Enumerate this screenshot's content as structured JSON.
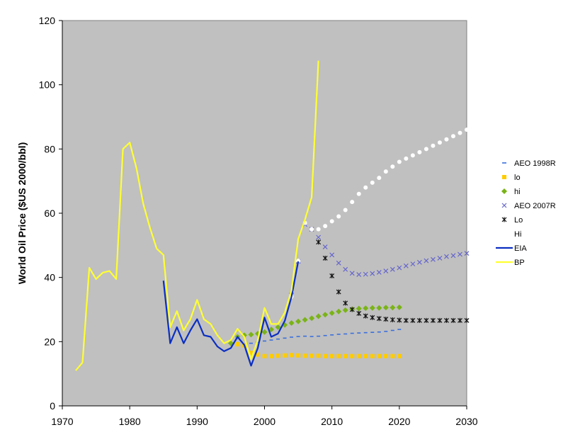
{
  "chart_data": {
    "type": "line",
    "title": "",
    "xlabel": "",
    "ylabel": "World Oil Price ($US 2000/bbl)",
    "xlim": [
      1970,
      2030
    ],
    "ylim": [
      0,
      120
    ],
    "xticks": [
      1970,
      1980,
      1990,
      2000,
      2010,
      2020,
      2030
    ],
    "yticks": [
      0,
      20,
      40,
      60,
      80,
      100,
      120
    ],
    "plot_background": "#c0c0c0",
    "grid": false,
    "legend_position": "right",
    "series": [
      {
        "name": "AEO 1998R",
        "style": "dash",
        "color": "#3a6fdc",
        "points": [
          [
            1996,
            19.0
          ],
          [
            1997,
            19.2
          ],
          [
            1998,
            19.5
          ],
          [
            1999,
            19.8
          ],
          [
            2000,
            20.2
          ],
          [
            2001,
            20.5
          ],
          [
            2002,
            20.8
          ],
          [
            2003,
            21.1
          ],
          [
            2004,
            21.4
          ],
          [
            2005,
            21.6
          ],
          [
            2006,
            21.7
          ],
          [
            2007,
            21.6
          ],
          [
            2008,
            21.7
          ],
          [
            2009,
            21.9
          ],
          [
            2010,
            22.1
          ],
          [
            2011,
            22.3
          ],
          [
            2012,
            22.4
          ],
          [
            2013,
            22.6
          ],
          [
            2014,
            22.7
          ],
          [
            2015,
            22.8
          ],
          [
            2016,
            22.9
          ],
          [
            2017,
            23.0
          ],
          [
            2018,
            23.2
          ],
          [
            2019,
            23.5
          ],
          [
            2020,
            23.8
          ]
        ]
      },
      {
        "name": "lo",
        "style": "square",
        "color": "#ffcc00",
        "points": [
          [
            1996,
            19.2
          ],
          [
            1997,
            18.8
          ],
          [
            1998,
            16.5
          ],
          [
            1999,
            16.0
          ],
          [
            2000,
            15.5
          ],
          [
            2001,
            15.5
          ],
          [
            2002,
            15.6
          ],
          [
            2003,
            15.7
          ],
          [
            2004,
            15.8
          ],
          [
            2005,
            15.7
          ],
          [
            2006,
            15.6
          ],
          [
            2007,
            15.6
          ],
          [
            2008,
            15.6
          ],
          [
            2009,
            15.5
          ],
          [
            2010,
            15.5
          ],
          [
            2011,
            15.5
          ],
          [
            2012,
            15.5
          ],
          [
            2013,
            15.5
          ],
          [
            2014,
            15.5
          ],
          [
            2015,
            15.5
          ],
          [
            2016,
            15.5
          ],
          [
            2017,
            15.5
          ],
          [
            2018,
            15.5
          ],
          [
            2019,
            15.5
          ],
          [
            2020,
            15.5
          ]
        ]
      },
      {
        "name": "hi",
        "style": "diamond",
        "color": "#7ab317",
        "points": [
          [
            1995,
            19.5
          ],
          [
            1996,
            21.5
          ],
          [
            1997,
            22.0
          ],
          [
            1998,
            22.2
          ],
          [
            1999,
            22.5
          ],
          [
            2000,
            23.0
          ],
          [
            2001,
            23.8
          ],
          [
            2002,
            24.5
          ],
          [
            2003,
            25.2
          ],
          [
            2004,
            25.8
          ],
          [
            2005,
            26.3
          ],
          [
            2006,
            26.8
          ],
          [
            2007,
            27.3
          ],
          [
            2008,
            27.9
          ],
          [
            2009,
            28.4
          ],
          [
            2010,
            28.9
          ],
          [
            2011,
            29.4
          ],
          [
            2012,
            29.8
          ],
          [
            2013,
            30.1
          ],
          [
            2014,
            30.3
          ],
          [
            2015,
            30.4
          ],
          [
            2016,
            30.5
          ],
          [
            2017,
            30.5
          ],
          [
            2018,
            30.6
          ],
          [
            2019,
            30.6
          ],
          [
            2020,
            30.7
          ]
        ]
      },
      {
        "name": "AEO 2007R",
        "style": "x",
        "color": "#6666cc",
        "points": [
          [
            2004,
            34.5
          ],
          [
            2005,
            45.0
          ],
          [
            2006,
            56.5
          ],
          [
            2007,
            55.0
          ],
          [
            2008,
            52.5
          ],
          [
            2009,
            49.5
          ],
          [
            2010,
            47.0
          ],
          [
            2011,
            44.5
          ],
          [
            2012,
            42.5
          ],
          [
            2013,
            41.3
          ],
          [
            2014,
            40.9
          ],
          [
            2015,
            41.0
          ],
          [
            2016,
            41.2
          ],
          [
            2017,
            41.6
          ],
          [
            2018,
            42.0
          ],
          [
            2019,
            42.5
          ],
          [
            2020,
            43.0
          ],
          [
            2021,
            43.6
          ],
          [
            2022,
            44.2
          ],
          [
            2023,
            44.7
          ],
          [
            2024,
            45.2
          ],
          [
            2025,
            45.6
          ],
          [
            2026,
            46.0
          ],
          [
            2027,
            46.5
          ],
          [
            2028,
            46.8
          ],
          [
            2029,
            47.2
          ],
          [
            2030,
            47.5
          ]
        ]
      },
      {
        "name": "Lo",
        "style": "star",
        "color": "#111111",
        "points": [
          [
            2008,
            51.0
          ],
          [
            2009,
            46.0
          ],
          [
            2010,
            40.5
          ],
          [
            2011,
            35.5
          ],
          [
            2012,
            32.0
          ],
          [
            2013,
            30.0
          ],
          [
            2014,
            28.8
          ],
          [
            2015,
            28.0
          ],
          [
            2016,
            27.5
          ],
          [
            2017,
            27.2
          ],
          [
            2018,
            27.0
          ],
          [
            2019,
            26.8
          ],
          [
            2020,
            26.7
          ],
          [
            2021,
            26.6
          ],
          [
            2022,
            26.6
          ],
          [
            2023,
            26.6
          ],
          [
            2024,
            26.6
          ],
          [
            2025,
            26.6
          ],
          [
            2026,
            26.6
          ],
          [
            2027,
            26.6
          ],
          [
            2028,
            26.6
          ],
          [
            2029,
            26.6
          ],
          [
            2030,
            26.6
          ]
        ]
      },
      {
        "name": "Hi",
        "style": "dot",
        "color": "#ffffff",
        "points": [
          [
            2004,
            34.0
          ],
          [
            2005,
            45.2
          ],
          [
            2006,
            57.0
          ],
          [
            2007,
            55.0
          ],
          [
            2008,
            55.0
          ],
          [
            2009,
            56.0
          ],
          [
            2010,
            57.5
          ],
          [
            2011,
            59.0
          ],
          [
            2012,
            61.0
          ],
          [
            2013,
            63.5
          ],
          [
            2014,
            66.0
          ],
          [
            2015,
            68.0
          ],
          [
            2016,
            69.5
          ],
          [
            2017,
            71.0
          ],
          [
            2018,
            73.0
          ],
          [
            2019,
            74.5
          ],
          [
            2020,
            76.0
          ],
          [
            2021,
            77.0
          ],
          [
            2022,
            78.0
          ],
          [
            2023,
            79.0
          ],
          [
            2024,
            80.0
          ],
          [
            2025,
            81.0
          ],
          [
            2026,
            82.0
          ],
          [
            2027,
            83.0
          ],
          [
            2028,
            84.0
          ],
          [
            2029,
            85.0
          ],
          [
            2030,
            86.0
          ]
        ]
      },
      {
        "name": "EIA",
        "style": "line",
        "color": "#0b2fc2",
        "points": [
          [
            1985,
            39.0
          ],
          [
            1986,
            19.5
          ],
          [
            1987,
            24.5
          ],
          [
            1988,
            19.5
          ],
          [
            1989,
            23.5
          ],
          [
            1990,
            27.0
          ],
          [
            1991,
            22.0
          ],
          [
            1992,
            21.5
          ],
          [
            1993,
            18.5
          ],
          [
            1994,
            17.0
          ],
          [
            1995,
            18.0
          ],
          [
            1996,
            21.5
          ],
          [
            1997,
            19.0
          ],
          [
            1998,
            12.5
          ],
          [
            1999,
            18.0
          ],
          [
            2000,
            27.5
          ],
          [
            2001,
            21.5
          ],
          [
            2002,
            22.5
          ],
          [
            2003,
            26.5
          ],
          [
            2004,
            34.0
          ],
          [
            2005,
            45.0
          ]
        ]
      },
      {
        "name": "BP",
        "style": "line",
        "color": "#ffff33",
        "points": [
          [
            1972,
            11.0
          ],
          [
            1973,
            13.5
          ],
          [
            1974,
            43.0
          ],
          [
            1975,
            39.5
          ],
          [
            1976,
            41.5
          ],
          [
            1977,
            42.0
          ],
          [
            1978,
            39.5
          ],
          [
            1979,
            80.0
          ],
          [
            1980,
            82.0
          ],
          [
            1981,
            74.0
          ],
          [
            1982,
            63.0
          ],
          [
            1983,
            55.5
          ],
          [
            1984,
            49.0
          ],
          [
            1985,
            47.0
          ],
          [
            1986,
            24.5
          ],
          [
            1987,
            29.5
          ],
          [
            1988,
            23.5
          ],
          [
            1989,
            27.0
          ],
          [
            1990,
            33.0
          ],
          [
            1991,
            27.0
          ],
          [
            1992,
            25.5
          ],
          [
            1993,
            22.0
          ],
          [
            1994,
            19.5
          ],
          [
            1995,
            20.5
          ],
          [
            1996,
            24.0
          ],
          [
            1997,
            21.5
          ],
          [
            1998,
            14.5
          ],
          [
            1999,
            20.5
          ],
          [
            2000,
            30.5
          ],
          [
            2001,
            25.5
          ],
          [
            2002,
            25.5
          ],
          [
            2003,
            29.0
          ],
          [
            2004,
            36.0
          ],
          [
            2005,
            52.0
          ],
          [
            2006,
            58.0
          ],
          [
            2007,
            65.0
          ],
          [
            2008,
            107.5
          ]
        ]
      }
    ]
  }
}
